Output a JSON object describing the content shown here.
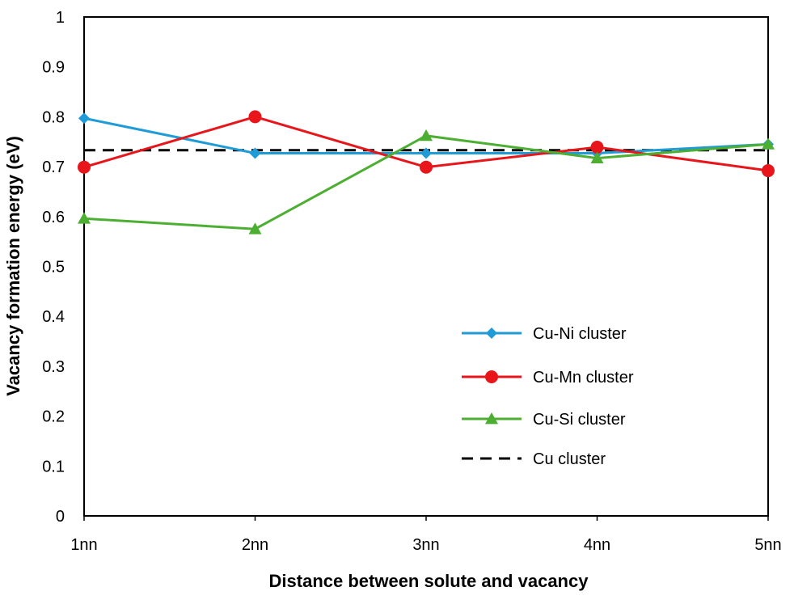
{
  "chart_data": {
    "type": "line",
    "xlabel": "Distance between solute and vacancy",
    "ylabel": "Vacancy formation energy (eV)",
    "categories": [
      "1nn",
      "2nn",
      "3nn",
      "4nn",
      "5nn"
    ],
    "ylim": [
      0,
      1
    ],
    "yticks": [
      "0",
      "0.1",
      "0.2",
      "0.3",
      "0.4",
      "0.5",
      "0.6",
      "0.7",
      "0.8",
      "0.9",
      "1"
    ],
    "grid": false,
    "legend_position": "bottom-right",
    "series": [
      {
        "name": "Cu-Ni cluster",
        "color": "#1f9bd7",
        "marker": "diamond",
        "dashed": false,
        "values": [
          0.797,
          0.727,
          0.727,
          0.727,
          0.745
        ]
      },
      {
        "name": "Cu-Mn cluster",
        "color": "#e8161b",
        "marker": "circle",
        "dashed": false,
        "values": [
          0.699,
          0.8,
          0.699,
          0.739,
          0.692
        ]
      },
      {
        "name": "Cu-Si cluster",
        "color": "#4caf32",
        "marker": "triangle",
        "dashed": false,
        "values": [
          0.596,
          0.575,
          0.762,
          0.717,
          0.745
        ]
      },
      {
        "name": "Cu cluster",
        "color": "#000000",
        "marker": "none",
        "dashed": true,
        "values": [
          0.733,
          0.733,
          0.733,
          0.733,
          0.733
        ]
      }
    ]
  }
}
